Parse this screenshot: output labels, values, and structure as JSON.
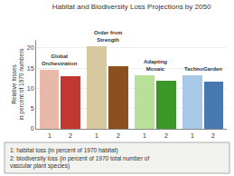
{
  "chart_data": {
    "type": "bar",
    "title": "Habitat and Biodiversity Loss Projections by 2050",
    "ylabel": "Relative losses\nin percent of 1970 numbers",
    "categories": [
      "Global\nOrchestration",
      "Order from\nStrength",
      "Adapting\nMosaic",
      "TechnoGarden"
    ],
    "series": [
      {
        "name": "1",
        "values": [
          14.5,
          20.5,
          13.2,
          13.2
        ],
        "colors": [
          "#e8b8a8",
          "#d8c8a0",
          "#b8e098",
          "#a8c8e8"
        ]
      },
      {
        "name": "2",
        "values": [
          13.0,
          15.5,
          11.8,
          11.7
        ],
        "colors": [
          "#c03830",
          "#8b5020",
          "#3a9828",
          "#4878b0"
        ]
      }
    ],
    "ylim": [
      0,
      22
    ],
    "yticks": [
      0,
      5,
      10,
      15,
      20
    ],
    "grid": true,
    "annotations": [
      "1: habitat loss (in percent of 1970 habitat)",
      "2: biodiversity loss (in percent of 1970 total number of vascular plant species)"
    ]
  }
}
